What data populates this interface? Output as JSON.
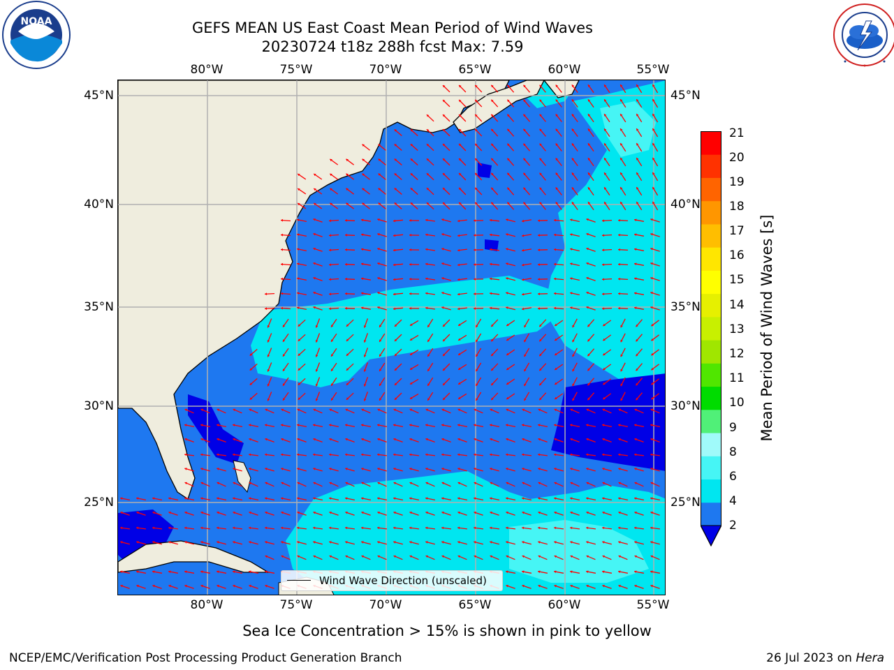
{
  "header": {
    "title_line1": "GEFS MEAN US East Coast Mean Period of Wind Waves",
    "title_line2": "20230724 t18z 288h fcst   Max: 7.59"
  },
  "logos": {
    "left": {
      "name": "noaa-logo",
      "text": "NOAA",
      "ring_text": "NATIONAL OCEANIC AND ATMOSPHERIC ADMINISTRATION · U.S. DEPARTMENT OF COMMERCE"
    },
    "right": {
      "name": "nws-logo",
      "ring_text": "NATIONAL WEATHER SERVICE"
    }
  },
  "map": {
    "lon_labels": [
      "80°W",
      "75°W",
      "70°W",
      "65°W",
      "60°W",
      "55°W"
    ],
    "lat_labels": [
      "45°N",
      "40°N",
      "35°N",
      "30°N",
      "25°N"
    ],
    "arrow_color": "#ff0000",
    "land_color": "#efedde",
    "gridline_color": "#b0b0b0",
    "legend_text": "Wind Wave Direction (unscaled)"
  },
  "colorbar": {
    "label": "Mean Period of Wind Waves [s]",
    "ticks": [
      "21",
      "20",
      "19",
      "18",
      "17",
      "16",
      "15",
      "14",
      "13",
      "12",
      "11",
      "10",
      "9",
      "8",
      "6",
      "4",
      "2"
    ],
    "colors_bottom_to_top": [
      "#1e78f0",
      "#00e6f0",
      "#46f5f5",
      "#a0fafa",
      "#50f078",
      "#00dc00",
      "#50e600",
      "#a0e600",
      "#c8f000",
      "#e6f000",
      "#ffff00",
      "#ffe600",
      "#ffbe00",
      "#ff9600",
      "#ff6400",
      "#ff3200",
      "#ff0000"
    ],
    "under_color": "#0000e6"
  },
  "caption": "Sea Ice Concentration > 15% is shown in pink to yellow",
  "footer": {
    "left": "NCEP/EMC/Verification Post Processing Product Generation Branch",
    "right_date": "26 Jul 2023 on ",
    "right_machine": "Hera"
  }
}
